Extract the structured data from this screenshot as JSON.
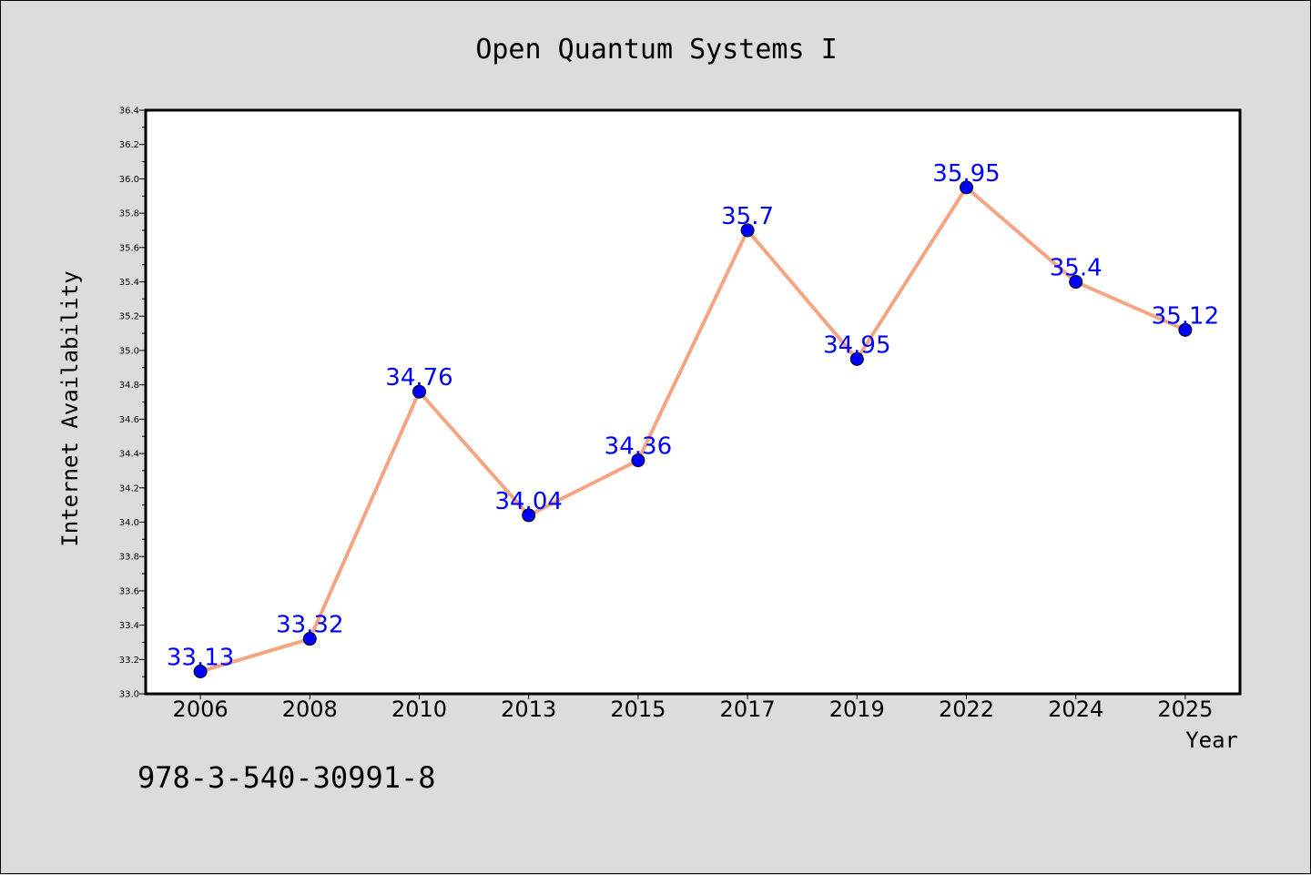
{
  "chart_data": {
    "type": "line",
    "title": "Open Quantum Systems I",
    "xlabel": "Year",
    "ylabel": "Internet Availability",
    "categories": [
      "2006",
      "2008",
      "2010",
      "2013",
      "2015",
      "2017",
      "2019",
      "2022",
      "2024",
      "2025"
    ],
    "values": [
      33.13,
      33.32,
      34.76,
      34.04,
      34.36,
      35.7,
      34.95,
      35.95,
      35.4,
      35.12
    ],
    "data_labels": [
      "33.13",
      "33.32",
      "34.76",
      "34.04",
      "34.36",
      "35.7",
      "34.95",
      "35.95",
      "35.4",
      "35.12"
    ],
    "ylim": [
      33.0,
      36.4
    ],
    "yticks": [
      "33.0",
      "33.2",
      "33.4",
      "33.6",
      "33.8",
      "34.0",
      "34.2",
      "34.4",
      "34.6",
      "34.8",
      "35.0",
      "35.2",
      "35.4",
      "35.6",
      "35.8",
      "36.0",
      "36.2",
      "36.4"
    ],
    "grid": false,
    "line_color": "#f4a582",
    "marker_color": "#0000ff",
    "label_color": "#0000ff",
    "background_color": "#dcdcdc",
    "plot_background": "#ffffff"
  },
  "footnote": "978-3-540-30991-8"
}
